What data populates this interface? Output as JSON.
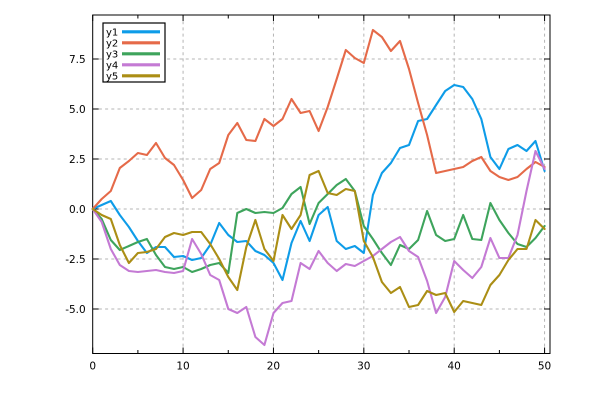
{
  "chart_data": {
    "type": "line",
    "title": "",
    "xlabel": "",
    "ylabel": "",
    "grid": true,
    "grid_color": "#b5b5b5",
    "border_color": "#000000",
    "background": "#ffffff",
    "legend_position": "top-left",
    "xlim": [
      0,
      50.6
    ],
    "ylim": [
      -7.2,
      9.7
    ],
    "x_ticks": [
      0,
      10,
      20,
      30,
      40,
      50
    ],
    "x_minor_ticks": [
      5,
      15,
      25,
      35,
      45
    ],
    "y_ticks": [
      -5.0,
      -2.5,
      0.0,
      2.5,
      5.0,
      7.5
    ],
    "y_tick_labels": [
      "-5.0",
      "-2.5",
      "0.0",
      "2.5",
      "5.0",
      "7.5"
    ],
    "x_tick_labels": [
      "0",
      "10",
      "20",
      "30",
      "40",
      "50"
    ],
    "x": [
      0,
      1,
      2,
      3,
      4,
      5,
      6,
      7,
      8,
      9,
      10,
      11,
      12,
      13,
      14,
      15,
      16,
      17,
      18,
      19,
      20,
      21,
      22,
      23,
      24,
      25,
      26,
      27,
      28,
      29,
      30,
      31,
      32,
      33,
      34,
      35,
      36,
      37,
      38,
      39,
      40,
      41,
      42,
      43,
      44,
      45,
      46,
      47,
      48,
      49,
      50
    ],
    "series": [
      {
        "name": "y1",
        "color": "#0e9ce8",
        "values": [
          0,
          0.2,
          0.4,
          -0.3,
          -0.9,
          -1.6,
          -2.2,
          -1.9,
          -1.9,
          -2.4,
          -2.35,
          -2.55,
          -2.45,
          -1.8,
          -0.7,
          -1.3,
          -1.65,
          -1.6,
          -2.1,
          -2.3,
          -2.7,
          -3.55,
          -1.7,
          -0.6,
          -1.6,
          -0.3,
          0.1,
          -1.6,
          -2.0,
          -1.85,
          -2.2,
          0.7,
          1.8,
          2.3,
          3.05,
          3.2,
          4.4,
          4.5,
          5.2,
          5.9,
          6.2,
          6.1,
          5.5,
          4.5,
          2.6,
          2.0,
          3.0,
          3.2,
          2.9,
          3.4,
          1.9
        ]
      },
      {
        "name": "y2",
        "color": "#e56a49",
        "values": [
          0,
          0.5,
          0.9,
          2.05,
          2.4,
          2.8,
          2.7,
          3.3,
          2.55,
          2.2,
          1.45,
          0.55,
          0.95,
          2.0,
          2.3,
          3.7,
          4.3,
          3.45,
          3.4,
          4.5,
          4.15,
          4.5,
          5.5,
          4.8,
          4.9,
          3.9,
          5.1,
          6.5,
          7.95,
          7.55,
          7.3,
          8.95,
          8.6,
          7.9,
          8.4,
          7.0,
          5.3,
          3.7,
          1.8,
          1.9,
          2.0,
          2.1,
          2.4,
          2.6,
          1.9,
          1.6,
          1.45,
          1.6,
          2.0,
          2.35,
          2.1
        ]
      },
      {
        "name": "y3",
        "color": "#3ea45c",
        "values": [
          0,
          -0.5,
          -1.55,
          -2.05,
          -1.85,
          -1.65,
          -1.5,
          -2.3,
          -2.9,
          -3.0,
          -2.9,
          -3.15,
          -3.0,
          -2.8,
          -2.7,
          -3.2,
          -0.2,
          0.0,
          -0.2,
          -0.15,
          -0.2,
          0.05,
          0.75,
          1.1,
          -0.75,
          0.3,
          0.75,
          1.2,
          1.5,
          0.9,
          -0.85,
          -1.5,
          -2.2,
          -2.8,
          -1.8,
          -2.0,
          -1.55,
          -0.1,
          -1.3,
          -1.6,
          -1.5,
          -0.3,
          -1.5,
          -1.55,
          0.3,
          -0.55,
          -1.2,
          -1.75,
          -1.9,
          -1.45,
          -0.85
        ]
      },
      {
        "name": "y4",
        "color": "#c47ad4",
        "values": [
          0,
          -0.65,
          -2.0,
          -2.8,
          -3.1,
          -3.15,
          -3.1,
          -3.05,
          -3.15,
          -3.2,
          -3.1,
          -1.5,
          -2.25,
          -3.3,
          -3.55,
          -5.0,
          -5.2,
          -4.9,
          -6.4,
          -6.8,
          -5.2,
          -4.7,
          -4.6,
          -2.7,
          -3.0,
          -2.1,
          -2.7,
          -3.1,
          -2.75,
          -2.85,
          -2.6,
          -2.35,
          -2.0,
          -1.65,
          -1.4,
          -2.1,
          -2.4,
          -3.6,
          -5.2,
          -4.4,
          -2.6,
          -3.05,
          -3.45,
          -2.9,
          -1.45,
          -2.45,
          -2.45,
          -1.3,
          0.9,
          2.9,
          2.0
        ]
      },
      {
        "name": "y5",
        "color": "#ab8e15",
        "values": [
          0,
          -0.3,
          -0.5,
          -1.8,
          -2.7,
          -2.2,
          -2.15,
          -2.0,
          -1.4,
          -1.2,
          -1.3,
          -1.15,
          -1.15,
          -1.75,
          -2.5,
          -3.4,
          -4.05,
          -1.9,
          -0.55,
          -2.0,
          -2.6,
          -0.3,
          -1.0,
          -0.3,
          1.7,
          1.9,
          0.8,
          0.7,
          1.0,
          0.9,
          -1.6,
          -2.4,
          -3.65,
          -4.2,
          -3.9,
          -4.9,
          -4.8,
          -4.1,
          -4.3,
          -4.2,
          -5.15,
          -4.6,
          -4.7,
          -4.8,
          -3.8,
          -3.3,
          -2.55,
          -2.0,
          -2.0,
          -0.55,
          -1.0
        ]
      }
    ]
  },
  "legend": {
    "entries": [
      {
        "label": "y1",
        "color": "#0e9ce8"
      },
      {
        "label": "y2",
        "color": "#e56a49"
      },
      {
        "label": "y3",
        "color": "#3ea45c"
      },
      {
        "label": "y4",
        "color": "#c47ad4"
      },
      {
        "label": "y5",
        "color": "#ab8e15"
      }
    ]
  }
}
